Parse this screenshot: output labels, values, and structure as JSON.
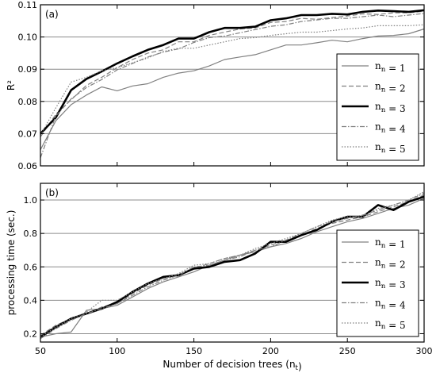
{
  "chart_data": [
    {
      "type": "line",
      "panel_label": "(a)",
      "title": "",
      "xlabel": "",
      "ylabel": "R²",
      "xlim": [
        50,
        300
      ],
      "ylim": [
        0.06,
        0.11
      ],
      "xticks": [
        50,
        100,
        150,
        200,
        250,
        300
      ],
      "yticks": [
        0.06,
        0.07,
        0.08,
        0.09,
        0.1,
        0.11
      ],
      "ytick_labels": [
        "0.06",
        "0.07",
        "0.08",
        "0.09",
        "0.10",
        "0.11"
      ],
      "show_xtick_labels": false,
      "grid": "horizontal",
      "legend_position": "lower-right",
      "x": [
        50,
        60,
        70,
        80,
        90,
        100,
        110,
        120,
        130,
        140,
        150,
        160,
        170,
        180,
        190,
        200,
        210,
        220,
        230,
        240,
        250,
        260,
        270,
        280,
        290,
        300
      ],
      "series": [
        {
          "name": "n_n = 1",
          "style": "solid-thin",
          "color": "#808080",
          "values": [
            0.065,
            0.074,
            0.079,
            0.082,
            0.0845,
            0.0833,
            0.0848,
            0.0855,
            0.0875,
            0.0888,
            0.0895,
            0.091,
            0.093,
            0.0938,
            0.0945,
            0.096,
            0.0975,
            0.0975,
            0.0982,
            0.099,
            0.0985,
            0.0995,
            0.1003,
            0.1005,
            0.101,
            0.1025
          ]
        },
        {
          "name": "n_n = 2",
          "style": "dashed",
          "color": "#808080",
          "values": [
            0.069,
            0.076,
            0.0805,
            0.085,
            0.0875,
            0.0905,
            0.093,
            0.095,
            0.096,
            0.0985,
            0.0985,
            0.1005,
            0.1015,
            0.1025,
            0.1028,
            0.1045,
            0.1048,
            0.1058,
            0.1055,
            0.106,
            0.1065,
            0.1072,
            0.107,
            0.1075,
            0.1075,
            0.108
          ]
        },
        {
          "name": "n_n = 3",
          "style": "solid-thick",
          "color": "#000000",
          "values": [
            0.07,
            0.075,
            0.0835,
            0.087,
            0.0893,
            0.0918,
            0.094,
            0.096,
            0.0975,
            0.0995,
            0.0995,
            0.1015,
            0.1028,
            0.1028,
            0.1032,
            0.1052,
            0.1058,
            0.1068,
            0.1068,
            0.1072,
            0.107,
            0.1078,
            0.1082,
            0.108,
            0.1078,
            0.1083
          ]
        },
        {
          "name": "n_n = 4",
          "style": "dashdot",
          "color": "#808080",
          "values": [
            0.0625,
            0.0755,
            0.0808,
            0.0843,
            0.0868,
            0.0898,
            0.0918,
            0.0938,
            0.0953,
            0.0963,
            0.0983,
            0.0998,
            0.1003,
            0.1013,
            0.1023,
            0.1033,
            0.1038,
            0.1048,
            0.1053,
            0.1058,
            0.1058,
            0.1063,
            0.1068,
            0.1063,
            0.1068,
            0.1073
          ]
        },
        {
          "name": "n_n = 5",
          "style": "dotted",
          "color": "#808080",
          "values": [
            0.0695,
            0.078,
            0.086,
            0.0875,
            0.0895,
            0.0905,
            0.092,
            0.0935,
            0.0955,
            0.0965,
            0.0965,
            0.0975,
            0.0985,
            0.0995,
            0.0998,
            0.1005,
            0.101,
            0.1015,
            0.1015,
            0.102,
            0.1025,
            0.1028,
            0.1035,
            0.1035,
            0.1035,
            0.1038
          ]
        }
      ]
    },
    {
      "type": "line",
      "panel_label": "(b)",
      "title": "",
      "xlabel": "Number of decision trees (n_t)",
      "ylabel": "processing time (sec.)",
      "xlim": [
        50,
        300
      ],
      "ylim": [
        0.15,
        1.1
      ],
      "xticks": [
        50,
        100,
        150,
        200,
        250,
        300
      ],
      "xtick_labels": [
        "50",
        "100",
        "150",
        "200",
        "250",
        "300"
      ],
      "yticks": [
        0.2,
        0.4,
        0.6,
        0.8,
        1.0
      ],
      "ytick_labels": [
        "0.2",
        "0.4",
        "0.6",
        "0.8",
        "1.0"
      ],
      "show_xtick_labels": true,
      "grid": "horizontal",
      "legend_position": "lower-right",
      "x": [
        50,
        60,
        70,
        80,
        90,
        100,
        110,
        120,
        130,
        140,
        150,
        160,
        170,
        180,
        190,
        200,
        210,
        220,
        230,
        240,
        250,
        260,
        270,
        280,
        290,
        300
      ],
      "series": [
        {
          "name": "n_n = 1",
          "style": "solid-thin",
          "color": "#808080",
          "values": [
            0.18,
            0.2,
            0.21,
            0.34,
            0.35,
            0.37,
            0.42,
            0.47,
            0.51,
            0.54,
            0.57,
            0.61,
            0.64,
            0.67,
            0.69,
            0.72,
            0.74,
            0.77,
            0.81,
            0.84,
            0.87,
            0.89,
            0.92,
            0.95,
            0.97,
            1.01
          ]
        },
        {
          "name": "n_n = 2",
          "style": "dashed",
          "color": "#808080",
          "values": [
            0.19,
            0.25,
            0.29,
            0.32,
            0.36,
            0.38,
            0.44,
            0.49,
            0.53,
            0.55,
            0.59,
            0.62,
            0.65,
            0.67,
            0.7,
            0.73,
            0.76,
            0.79,
            0.83,
            0.86,
            0.88,
            0.9,
            0.93,
            0.96,
            0.99,
            1.03
          ]
        },
        {
          "name": "n_n = 3",
          "style": "solid-thick",
          "color": "#000000",
          "values": [
            0.18,
            0.24,
            0.29,
            0.32,
            0.35,
            0.39,
            0.45,
            0.5,
            0.54,
            0.55,
            0.59,
            0.6,
            0.63,
            0.64,
            0.68,
            0.75,
            0.75,
            0.79,
            0.82,
            0.87,
            0.9,
            0.9,
            0.97,
            0.94,
            0.99,
            1.02
          ]
        },
        {
          "name": "n_n = 4",
          "style": "dashdot",
          "color": "#808080",
          "values": [
            0.17,
            0.23,
            0.28,
            0.32,
            0.35,
            0.38,
            0.43,
            0.48,
            0.52,
            0.55,
            0.6,
            0.61,
            0.64,
            0.66,
            0.7,
            0.72,
            0.76,
            0.8,
            0.84,
            0.87,
            0.89,
            0.91,
            0.94,
            0.97,
            1.0,
            1.04
          ]
        },
        {
          "name": "n_n = 5",
          "style": "dotted",
          "color": "#808080",
          "values": [
            0.18,
            0.24,
            0.29,
            0.33,
            0.4,
            0.4,
            0.45,
            0.5,
            0.53,
            0.56,
            0.61,
            0.62,
            0.65,
            0.67,
            0.71,
            0.74,
            0.77,
            0.8,
            0.84,
            0.88,
            0.9,
            0.9,
            0.95,
            0.97,
            1.0,
            1.05
          ]
        }
      ]
    }
  ]
}
